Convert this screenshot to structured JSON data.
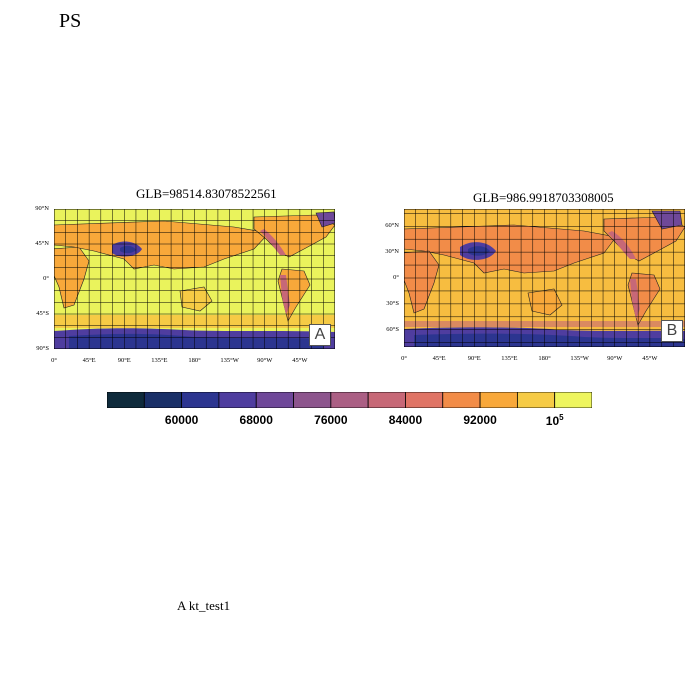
{
  "page_title": "PS",
  "footer_note": "A  kt_test1",
  "panels": [
    {
      "id": "A",
      "title": "GLB=98514.83078522561",
      "tag": "A",
      "lat_ticks": [
        "90°N",
        "45°N",
        "0°",
        "45°S",
        "90°S"
      ],
      "lat_values": [
        90,
        45,
        0,
        -45,
        -90
      ],
      "lat_range": [
        -90,
        90
      ],
      "lon_ticks": [
        "0°",
        "45°E",
        "90°E",
        "135°E",
        "180°",
        "135°W",
        "90°W",
        "45°W"
      ],
      "lon_values": [
        0,
        45,
        90,
        135,
        180,
        225,
        270,
        315
      ],
      "lon_range": [
        0,
        360
      ]
    },
    {
      "id": "B",
      "title": "GLB=986.9918703308005",
      "tag": "B",
      "lat_ticks": [
        "60°N",
        "30°N",
        "0°",
        "30°S",
        "60°S"
      ],
      "lat_values": [
        60,
        30,
        0,
        -30,
        -60
      ],
      "lat_range": [
        -80,
        80
      ],
      "lon_ticks": [
        "0°",
        "45°E",
        "90°E",
        "135°E",
        "180°",
        "135°W",
        "90°W",
        "45°W"
      ],
      "lon_values": [
        0,
        45,
        90,
        135,
        180,
        225,
        270,
        315
      ],
      "lon_range": [
        0,
        360
      ]
    }
  ],
  "colorbar": {
    "colors": [
      "#0f2b3c",
      "#1a3068",
      "#2c3590",
      "#4f3d9f",
      "#6f4899",
      "#8d558d",
      "#ab5f84",
      "#c76877",
      "#e07465",
      "#f28c48",
      "#f8a83a",
      "#f6cb45",
      "#eef55e"
    ],
    "labels": [
      "60000",
      "68000",
      "76000",
      "84000",
      "92000",
      "10"
    ],
    "last_label_exponent": "5"
  }
}
